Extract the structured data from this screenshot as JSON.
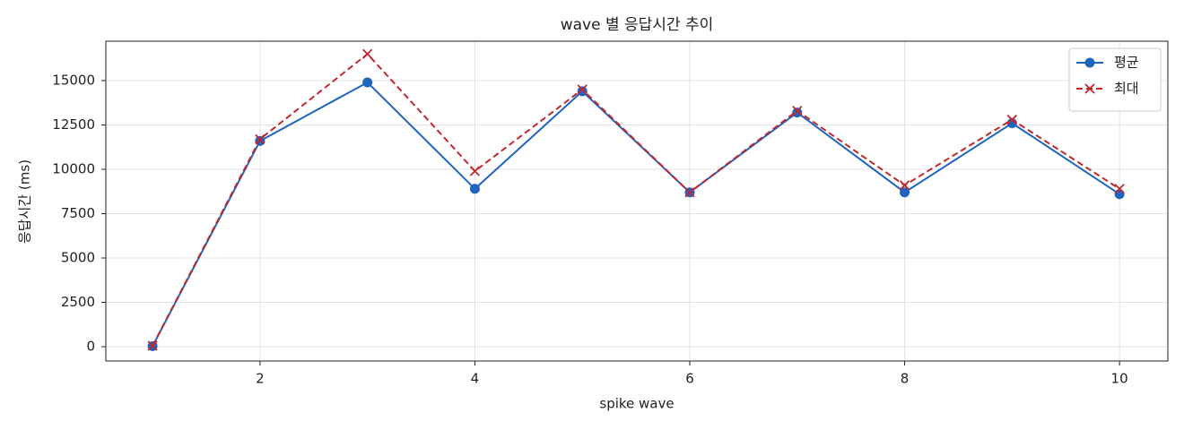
{
  "chart_data": {
    "type": "line",
    "title": "wave 별 응답시간 추이",
    "xlabel": "spike wave",
    "ylabel": "응답시간 (ms)",
    "x": [
      1,
      2,
      3,
      4,
      5,
      6,
      7,
      8,
      9,
      10
    ],
    "series": [
      {
        "name": "평균",
        "color": "#1f64c0",
        "linestyle": "solid",
        "marker": "circle",
        "values": [
          30,
          11600,
          14900,
          8900,
          14400,
          8700,
          13200,
          8700,
          12600,
          8600
        ]
      },
      {
        "name": "최대",
        "color": "#c0282d",
        "linestyle": "dashed",
        "marker": "x",
        "values": [
          50,
          11700,
          16500,
          9900,
          14500,
          8700,
          13300,
          9100,
          12800,
          8900
        ]
      }
    ],
    "xlim": [
      0.565,
      10.45
    ],
    "ylim": [
      -808,
      17222
    ],
    "xticks": [
      2,
      4,
      6,
      8,
      10
    ],
    "yticks": [
      0,
      2500,
      5000,
      7500,
      10000,
      12500,
      15000
    ],
    "grid": true,
    "legend": "upper right"
  }
}
